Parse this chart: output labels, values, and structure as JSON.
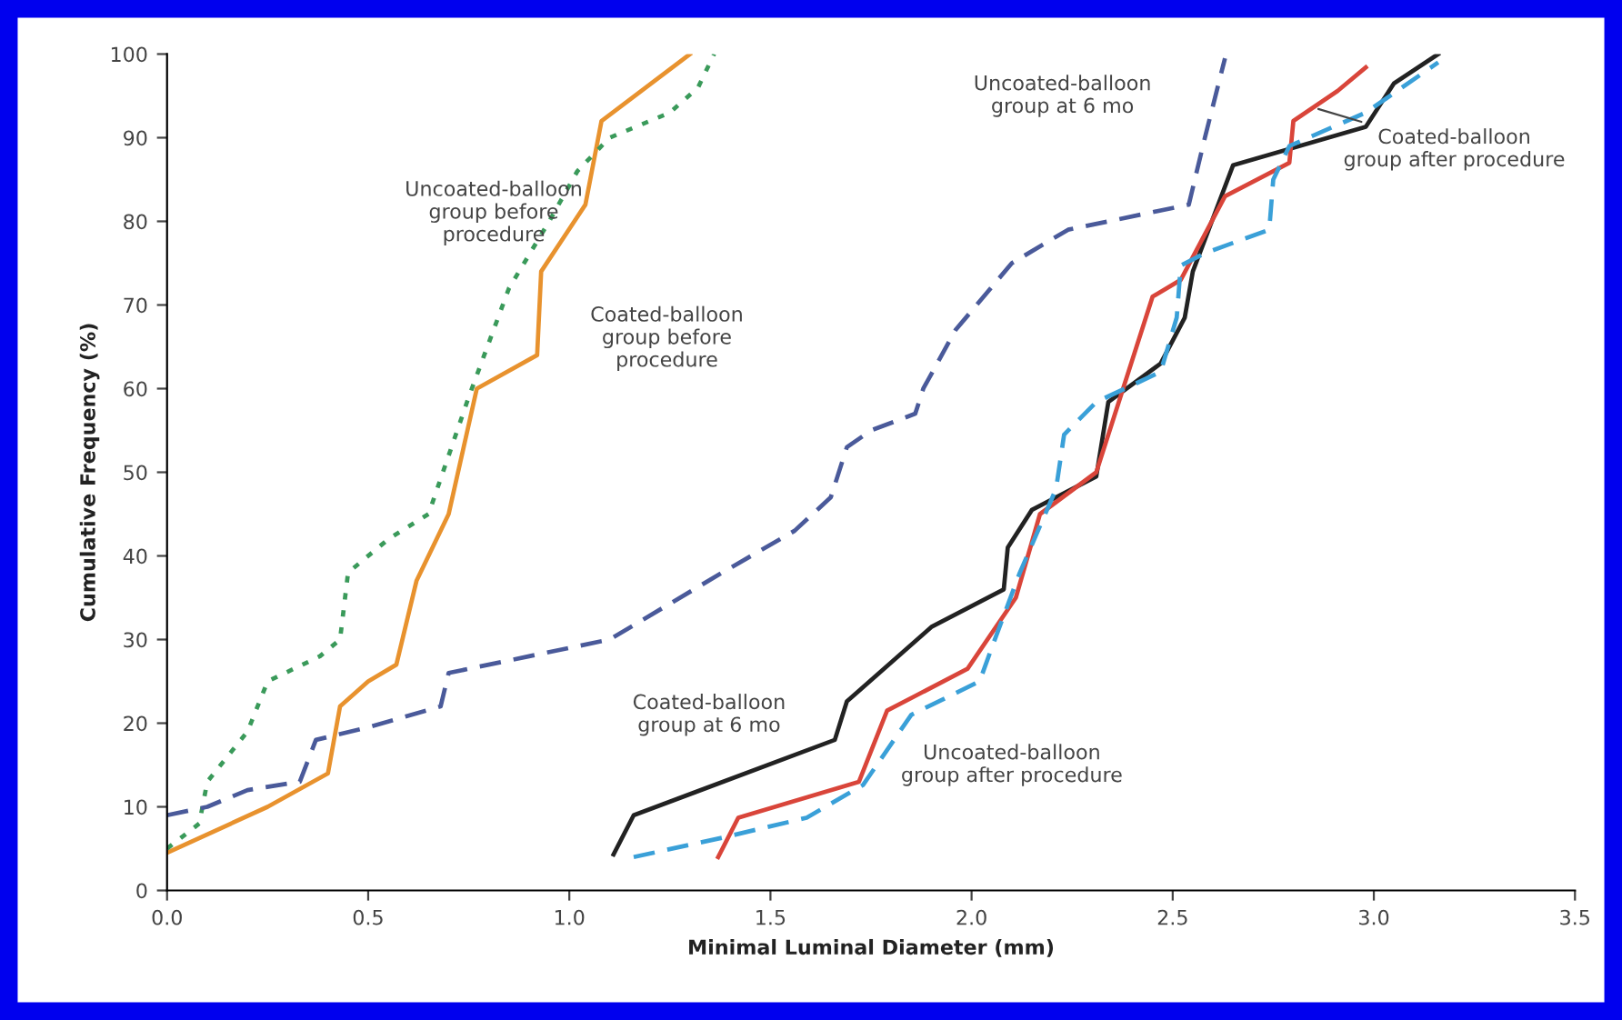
{
  "chart_data": {
    "type": "line",
    "xlabel": "Minimal Luminal Diameter (mm)",
    "ylabel": "Cumulative Frequency (%)",
    "xlim": [
      0,
      3.5
    ],
    "ylim": [
      0,
      100
    ],
    "xticks": [
      {
        "value": 0,
        "label": "0.0"
      },
      0.5,
      {
        "value": 1,
        "label": "1.0"
      },
      1.5,
      {
        "value": 2,
        "label": "2.0"
      },
      2.5,
      {
        "value": 3,
        "label": "3.0"
      },
      3.5
    ],
    "yticks": [
      0,
      10,
      20,
      30,
      40,
      50,
      60,
      70,
      80,
      90,
      100
    ],
    "grid": false,
    "legend": false,
    "marker": "none",
    "series": [
      {
        "color": "#e8922e",
        "line_style": "solid",
        "x": [
          0,
          0.25,
          0.4,
          0.43,
          0.5,
          0.57,
          0.62,
          0.7,
          0.77,
          0.92,
          0.93,
          1.04,
          1.08,
          1.3
        ],
        "values": [
          4.5,
          10,
          14,
          22,
          25,
          27,
          37,
          45,
          60,
          64,
          74,
          82,
          92,
          100
        ]
      },
      {
        "color": "#3a9a5a",
        "line_style": "dotted",
        "x": [
          0,
          0.08,
          0.1,
          0.2,
          0.25,
          0.38,
          0.43,
          0.45,
          0.55,
          0.65,
          0.7,
          0.75,
          0.85,
          0.95,
          1.02,
          1.1,
          1.25,
          1.32,
          1.36
        ],
        "values": [
          5,
          8,
          13,
          19,
          25,
          28,
          30,
          38,
          42,
          45,
          52,
          59,
          72,
          80,
          86,
          90,
          93,
          96,
          100
        ]
      },
      {
        "color": "#4a5a9a",
        "line_style": "dashed",
        "x": [
          0,
          0.1,
          0.2,
          0.33,
          0.37,
          0.5,
          0.68,
          0.7,
          0.9,
          1.1,
          1.38,
          1.56,
          1.65,
          1.69,
          1.75,
          1.86,
          1.88,
          1.96,
          2.1,
          2.24,
          2.54,
          2.58,
          2.63
        ],
        "values": [
          9,
          10,
          12,
          13,
          18,
          19.5,
          22,
          26,
          28,
          30,
          38,
          43,
          47,
          53,
          55,
          57,
          60,
          67,
          75,
          79,
          82,
          90,
          99.5
        ]
      },
      {
        "color": "#222222",
        "line_style": "solid",
        "x": [
          1.11,
          1.16,
          1.66,
          1.69,
          1.9,
          2.08,
          2.09,
          2.15,
          2.31,
          2.34,
          2.47,
          2.53,
          2.55,
          2.65,
          2.98,
          3.05,
          3.16
        ],
        "values": [
          4.3,
          9,
          18,
          22.6,
          31.5,
          36,
          41,
          45.5,
          49.5,
          58.4,
          63,
          68.5,
          74,
          86.7,
          91.3,
          96.5,
          100
        ]
      },
      {
        "color": "#d9453a",
        "line_style": "solid",
        "x": [
          1.37,
          1.42,
          1.72,
          1.79,
          1.99,
          2.11,
          2.17,
          2.31,
          2.45,
          2.52,
          2.63,
          2.79,
          2.8,
          2.91,
          2.98
        ],
        "values": [
          4,
          8.7,
          13,
          21.5,
          26.5,
          35,
          45,
          50,
          71,
          73,
          83,
          87,
          92,
          95.6,
          98.4
        ]
      },
      {
        "color": "#3aa0d8",
        "line_style": "dashed",
        "x": [
          1.16,
          1.38,
          1.59,
          1.73,
          1.85,
          2.02,
          2.05,
          2.12,
          2.21,
          2.23,
          2.31,
          2.47,
          2.51,
          2.52,
          2.58,
          2.74,
          2.75,
          2.79,
          2.98,
          3.16
        ],
        "values": [
          4,
          6.3,
          8.7,
          12.6,
          21,
          25,
          29,
          38,
          48,
          54.5,
          58.4,
          62,
          68.5,
          74.7,
          76.2,
          79,
          85,
          89,
          93,
          99
        ]
      }
    ],
    "annotations": [
      "Uncoated-balloon\ngroup before\nprocedure",
      "Coated-balloon\ngroup before\nprocedure",
      "Uncoated-balloon\ngroup at 6 mo",
      {
        "text": "Coated-balloon\ngroup after procedure",
        "x": 2.85,
        "y": 93.6
      },
      "Coated-balloon\ngroup at 6 mo",
      "Uncoated-balloon\ngroup after procedure"
    ]
  }
}
